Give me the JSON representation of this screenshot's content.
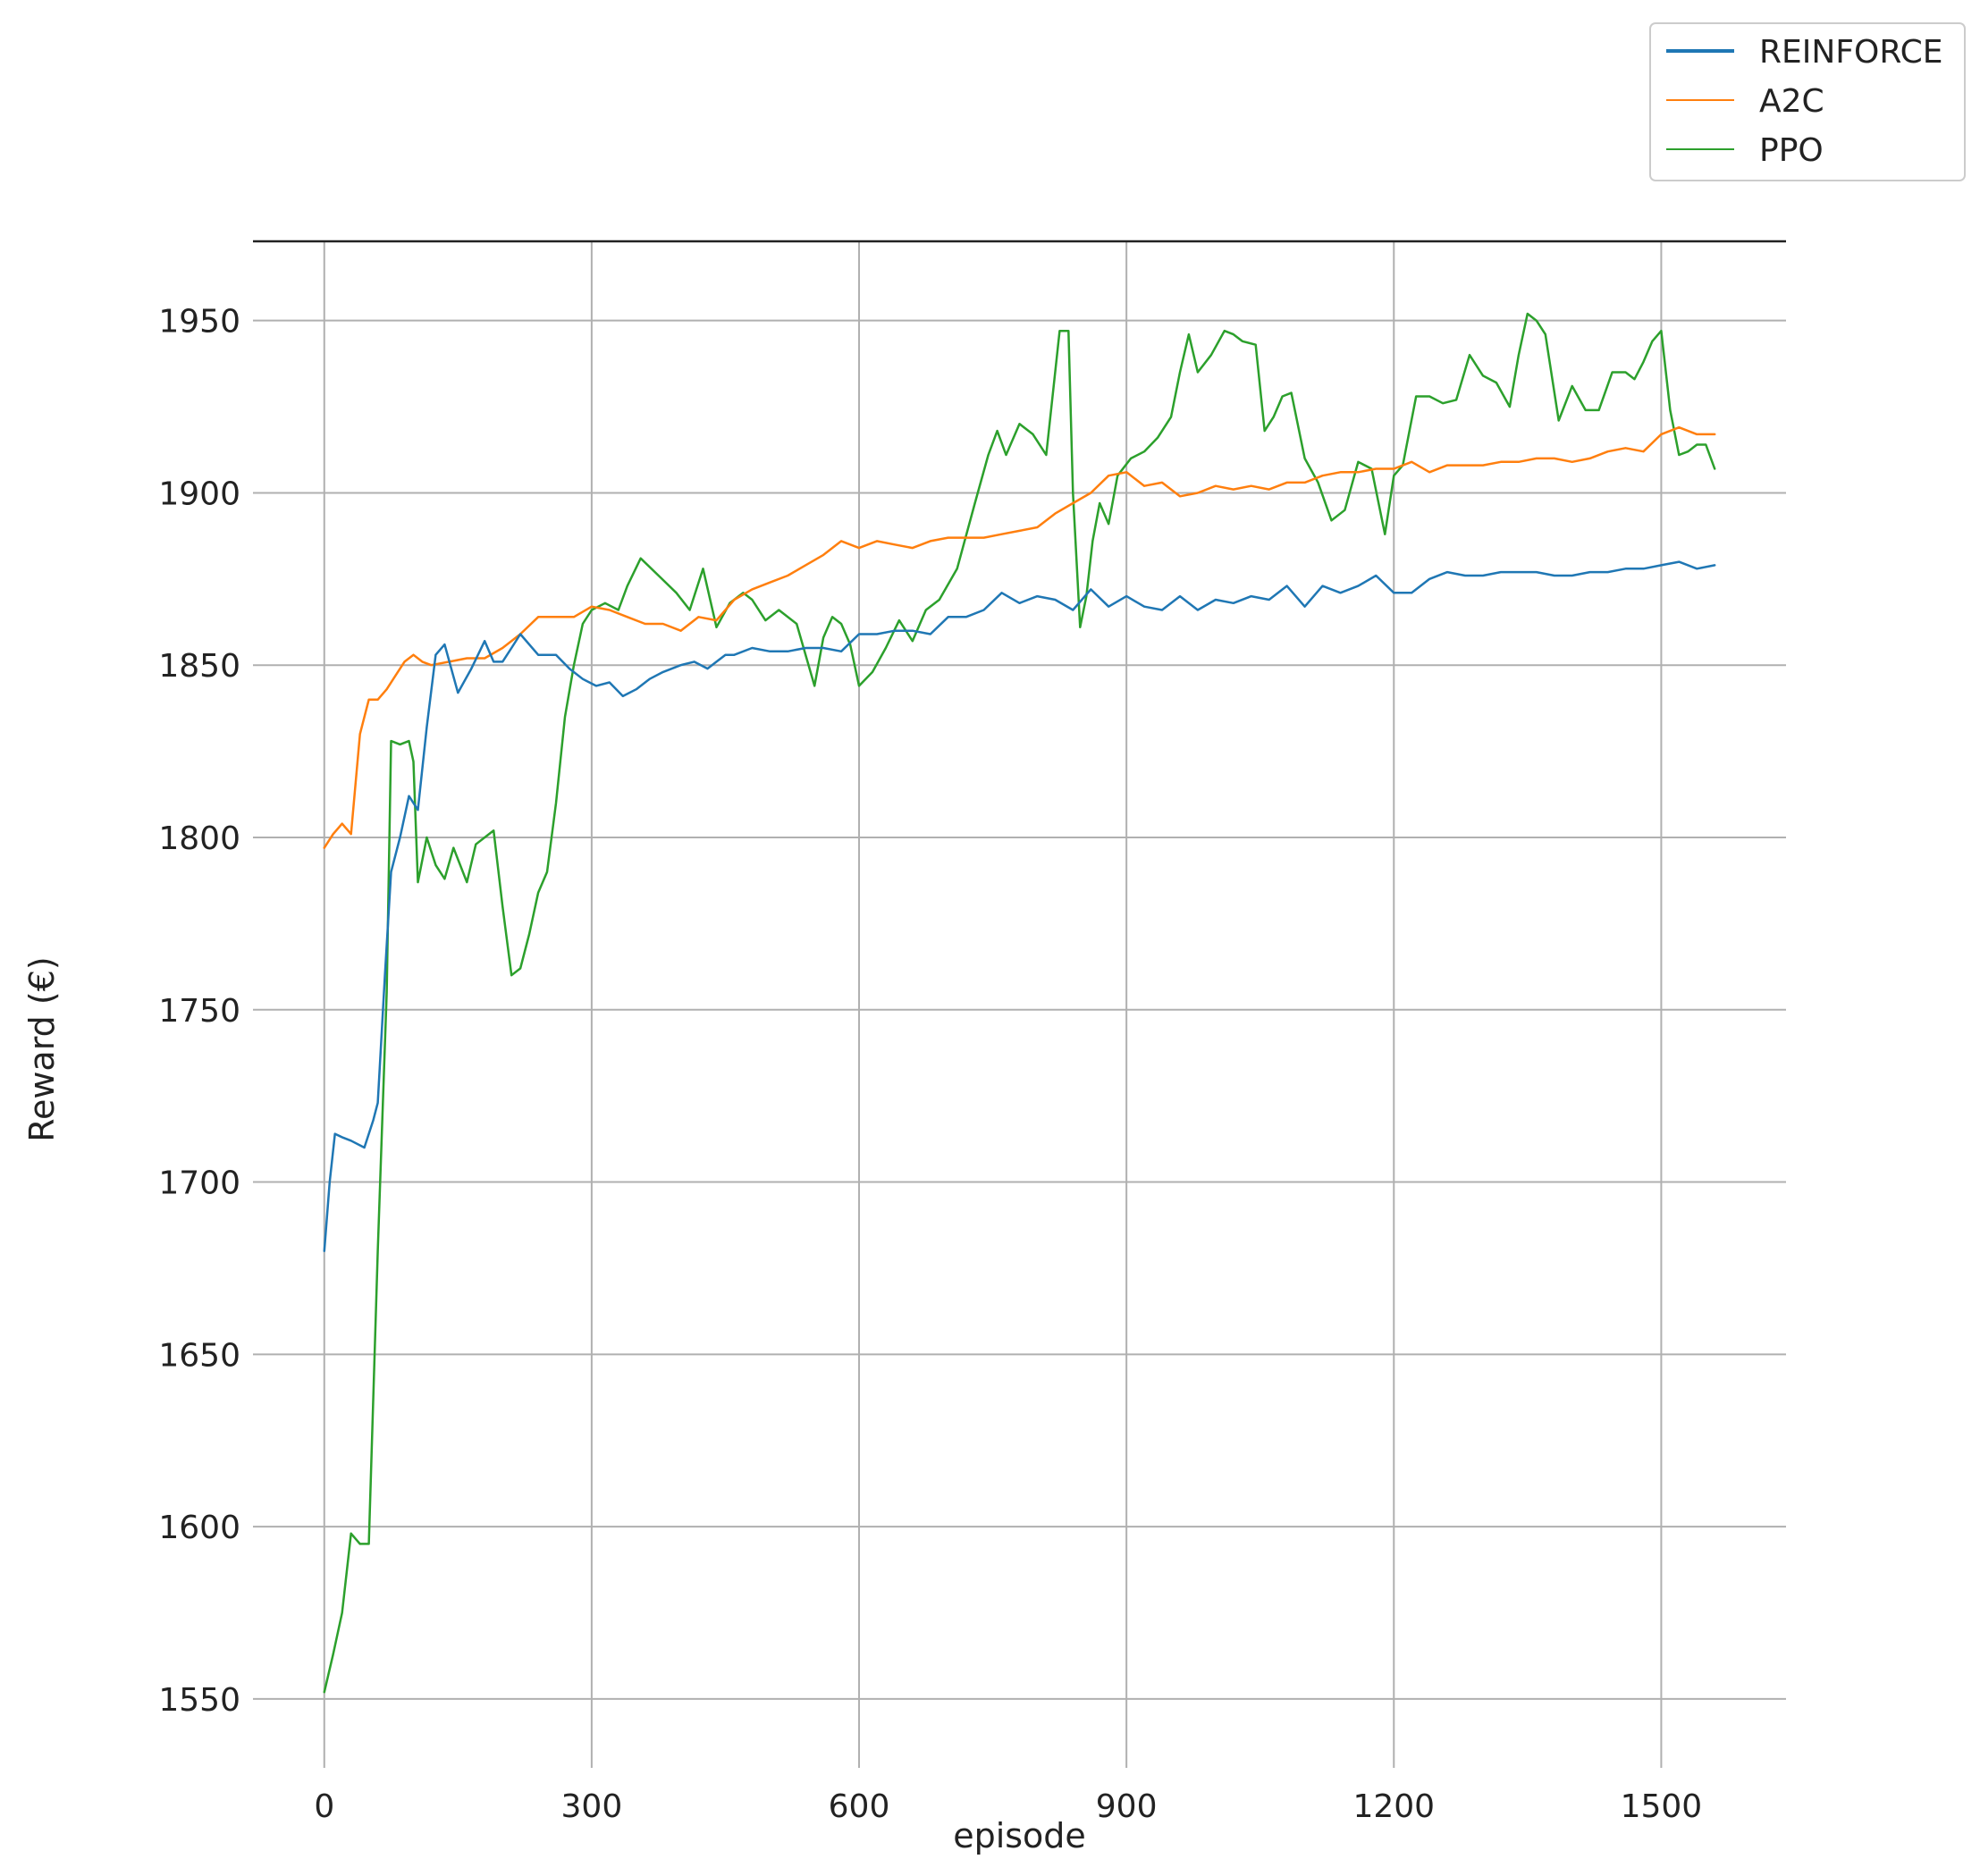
{
  "chart_data": {
    "type": "line",
    "title": "",
    "xlabel": "episode",
    "ylabel": "Reward (€)",
    "xlim": [
      -80,
      1640
    ],
    "ylim": [
      1530,
      1973
    ],
    "xticks": [
      0,
      300,
      600,
      900,
      1200,
      1500
    ],
    "yticks": [
      1550,
      1600,
      1650,
      1700,
      1750,
      1800,
      1850,
      1900,
      1950
    ],
    "grid": true,
    "legend": "top-right",
    "series": [
      {
        "name": "REINFORCE",
        "color": "#1f77b4",
        "x": [
          0,
          6,
          12,
          20,
          30,
          45,
          55,
          60,
          68,
          75,
          85,
          95,
          105,
          115,
          125,
          135,
          150,
          165,
          180,
          190,
          200,
          210,
          220,
          240,
          260,
          275,
          290,
          305,
          320,
          335,
          350,
          365,
          380,
          400,
          415,
          430,
          440,
          450,
          460,
          480,
          500,
          520,
          540,
          560,
          580,
          600,
          620,
          640,
          660,
          680,
          700,
          720,
          740,
          760,
          780,
          800,
          820,
          840,
          860,
          880,
          900,
          920,
          940,
          960,
          980,
          1000,
          1020,
          1040,
          1060,
          1080,
          1100,
          1120,
          1140,
          1160,
          1180,
          1200,
          1220,
          1240,
          1260,
          1280,
          1300,
          1320,
          1340,
          1360,
          1380,
          1400,
          1420,
          1440,
          1460,
          1480,
          1500,
          1520,
          1540,
          1560
        ],
        "values": [
          1680,
          1700,
          1714,
          1713,
          1712,
          1710,
          1718,
          1723,
          1760,
          1790,
          1800,
          1812,
          1808,
          1832,
          1853,
          1856,
          1842,
          1849,
          1857,
          1851,
          1851,
          1855,
          1859,
          1853,
          1853,
          1849,
          1846,
          1844,
          1845,
          1841,
          1843,
          1846,
          1848,
          1850,
          1851,
          1849,
          1851,
          1853,
          1853,
          1855,
          1854,
          1854,
          1855,
          1855,
          1854,
          1859,
          1859,
          1860,
          1860,
          1859,
          1864,
          1864,
          1866,
          1871,
          1868,
          1870,
          1869,
          1866,
          1872,
          1867,
          1870,
          1867,
          1866,
          1870,
          1866,
          1869,
          1868,
          1870,
          1869,
          1873,
          1867,
          1873,
          1871,
          1873,
          1876,
          1871,
          1871,
          1875,
          1877,
          1876,
          1876,
          1877,
          1877,
          1877,
          1876,
          1876,
          1877,
          1877,
          1878,
          1878,
          1879,
          1880,
          1878,
          1879
        ]
      },
      {
        "name": "A2C",
        "color": "#ff7f0e",
        "x": [
          0,
          10,
          20,
          30,
          40,
          50,
          60,
          70,
          80,
          90,
          100,
          110,
          120,
          140,
          160,
          180,
          200,
          220,
          240,
          260,
          280,
          300,
          320,
          340,
          360,
          380,
          400,
          420,
          440,
          460,
          480,
          500,
          520,
          540,
          560,
          580,
          600,
          620,
          640,
          660,
          680,
          700,
          720,
          740,
          760,
          780,
          800,
          820,
          840,
          860,
          880,
          900,
          920,
          940,
          960,
          980,
          1000,
          1020,
          1040,
          1060,
          1080,
          1100,
          1120,
          1140,
          1160,
          1180,
          1200,
          1220,
          1240,
          1260,
          1280,
          1300,
          1320,
          1340,
          1360,
          1380,
          1400,
          1420,
          1440,
          1460,
          1480,
          1500,
          1520,
          1540,
          1560
        ],
        "values": [
          1797,
          1801,
          1804,
          1801,
          1830,
          1840,
          1840,
          1843,
          1847,
          1851,
          1853,
          1851,
          1850,
          1851,
          1852,
          1852,
          1855,
          1859,
          1864,
          1864,
          1864,
          1867,
          1866,
          1864,
          1862,
          1862,
          1860,
          1864,
          1863,
          1869,
          1872,
          1874,
          1876,
          1879,
          1882,
          1886,
          1884,
          1886,
          1885,
          1884,
          1886,
          1887,
          1887,
          1887,
          1888,
          1889,
          1890,
          1894,
          1897,
          1900,
          1905,
          1906,
          1902,
          1903,
          1899,
          1900,
          1902,
          1901,
          1902,
          1901,
          1903,
          1903,
          1905,
          1906,
          1906,
          1907,
          1907,
          1909,
          1906,
          1908,
          1908,
          1908,
          1909,
          1909,
          1910,
          1910,
          1909,
          1910,
          1912,
          1913,
          1912,
          1917,
          1919,
          1917,
          1917
        ]
      },
      {
        "name": "PPO",
        "color": "#2ca02c",
        "x": [
          0,
          10,
          20,
          30,
          40,
          50,
          60,
          70,
          75,
          85,
          95,
          100,
          105,
          115,
          125,
          135,
          145,
          160,
          170,
          180,
          190,
          200,
          210,
          220,
          230,
          240,
          250,
          260,
          270,
          280,
          290,
          300,
          315,
          330,
          340,
          355,
          375,
          395,
          410,
          425,
          440,
          455,
          470,
          480,
          495,
          510,
          530,
          550,
          560,
          570,
          580,
          590,
          600,
          615,
          630,
          645,
          660,
          675,
          690,
          710,
          730,
          745,
          755,
          765,
          780,
          795,
          810,
          825,
          835,
          840,
          848,
          855,
          862,
          870,
          880,
          890,
          905,
          920,
          935,
          950,
          960,
          970,
          980,
          995,
          1010,
          1020,
          1030,
          1045,
          1055,
          1065,
          1075,
          1085,
          1100,
          1115,
          1130,
          1145,
          1160,
          1175,
          1190,
          1200,
          1210,
          1225,
          1240,
          1255,
          1270,
          1285,
          1300,
          1315,
          1330,
          1340,
          1350,
          1360,
          1370,
          1385,
          1400,
          1415,
          1430,
          1445,
          1460,
          1470,
          1480,
          1490,
          1500,
          1510,
          1520,
          1530,
          1540,
          1550,
          1560
        ],
        "values": [
          1552,
          1563,
          1575,
          1598,
          1595,
          1595,
          1680,
          1755,
          1828,
          1827,
          1828,
          1822,
          1787,
          1800,
          1792,
          1788,
          1797,
          1787,
          1798,
          1800,
          1802,
          1780,
          1760,
          1762,
          1772,
          1784,
          1790,
          1810,
          1835,
          1850,
          1862,
          1866,
          1868,
          1866,
          1873,
          1881,
          1876,
          1871,
          1866,
          1878,
          1861,
          1868,
          1871,
          1869,
          1863,
          1866,
          1862,
          1844,
          1858,
          1864,
          1862,
          1856,
          1844,
          1848,
          1855,
          1863,
          1857,
          1866,
          1869,
          1878,
          1897,
          1911,
          1918,
          1911,
          1920,
          1917,
          1911,
          1947,
          1947,
          1900,
          1861,
          1870,
          1886,
          1897,
          1891,
          1905,
          1910,
          1912,
          1916,
          1922,
          1935,
          1946,
          1935,
          1940,
          1947,
          1946,
          1944,
          1943,
          1918,
          1922,
          1928,
          1929,
          1910,
          1903,
          1892,
          1895,
          1909,
          1907,
          1888,
          1905,
          1908,
          1928,
          1928,
          1926,
          1927,
          1940,
          1934,
          1932,
          1925,
          1940,
          1952,
          1950,
          1946,
          1921,
          1931,
          1924,
          1924,
          1935,
          1935,
          1933,
          1938,
          1944,
          1947,
          1924,
          1911,
          1912,
          1914,
          1914,
          1907
        ]
      }
    ]
  }
}
